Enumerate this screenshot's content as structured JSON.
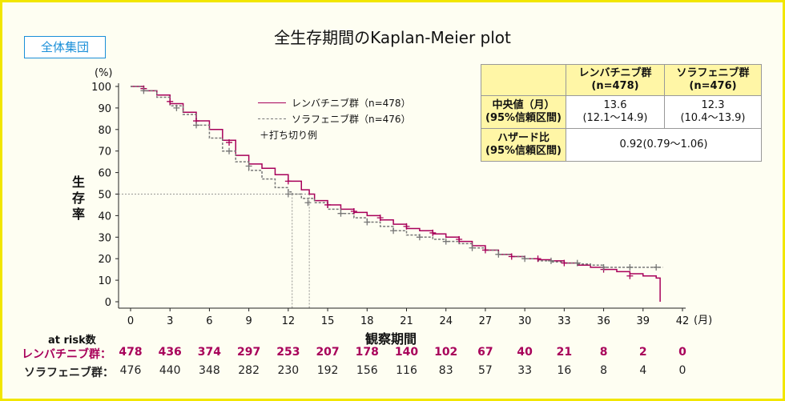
{
  "title": "全生存期間のKaplan-Meier plot",
  "subset_label": "全体集団",
  "y_unit": "(%)",
  "x_unit": "(月)",
  "ylabel": "生存率",
  "xlabel": "観察期間",
  "legend": {
    "lenvatinib": "レンバチニブ群（n=478）",
    "sorafenib": "ソラフェニブ群（n=476）",
    "censor": "＋打ち切り例"
  },
  "colors": {
    "lenvatinib": "#a8005a",
    "sorafenib": "#777777",
    "border": "#f2e600",
    "subset": "#1a8fd8",
    "table_header": "#fff6a6"
  },
  "median_table": {
    "col1": "レンバチニブ群\n(n=478)",
    "col2": "ソラフェニブ群\n(n=476)",
    "row1_label": "中央値（月）\n(95%信頼区間)",
    "row1_col1": "13.6\n(12.1～14.9)",
    "row1_col2": "12.3\n(10.4～13.9)",
    "row2_label": "ハザード比\n(95%信頼区間)",
    "row2_value": "0.92(0.79～1.06)"
  },
  "at_risk": {
    "title": "at risk数",
    "lenvatinib_label": "レンバチニブ群：",
    "sorafenib_label": "ソラフェニブ群：",
    "lenvatinib": [
      "478",
      "436",
      "374",
      "297",
      "253",
      "207",
      "178",
      "140",
      "102",
      "67",
      "40",
      "21",
      "8",
      "2",
      "0"
    ],
    "sorafenib": [
      "476",
      "440",
      "348",
      "282",
      "230",
      "192",
      "156",
      "116",
      "83",
      "57",
      "33",
      "16",
      "8",
      "4",
      "0"
    ]
  },
  "chart_data": {
    "type": "line",
    "title": "全生存期間のKaplan-Meier plot",
    "xlabel": "観察期間",
    "ylabel": "生存率",
    "x_unit": "月",
    "y_unit": "%",
    "xlim": [
      0,
      42
    ],
    "ylim": [
      0,
      100
    ],
    "x_ticks": [
      "0",
      "3",
      "6",
      "9",
      "12",
      "15",
      "18",
      "21",
      "24",
      "27",
      "30",
      "33",
      "36",
      "39",
      "42"
    ],
    "y_ticks": [
      "0",
      "10",
      "20",
      "30",
      "40",
      "50",
      "60",
      "70",
      "80",
      "90",
      "100"
    ],
    "medians": {
      "lenvatinib": 13.6,
      "sorafenib": 12.3,
      "level": 50
    },
    "series": [
      {
        "name": "レンバチニブ群（n=478）",
        "color": "#a8005a",
        "style": "solid",
        "x": [
          0,
          1,
          2,
          3,
          4,
          5,
          6,
          7,
          8,
          9,
          10,
          11,
          12,
          13,
          13.6,
          14,
          15,
          16,
          17,
          18,
          19,
          20,
          21,
          22,
          23,
          24,
          25,
          26,
          27,
          28,
          29,
          30,
          31,
          32,
          33,
          34,
          35,
          36,
          37,
          38,
          39,
          40,
          40.3
        ],
        "y": [
          100,
          98,
          96,
          92,
          88,
          84,
          80,
          75,
          68,
          64,
          62,
          59,
          56,
          52,
          50,
          47,
          45,
          43,
          41.5,
          40,
          38,
          36,
          34,
          33,
          31.5,
          30,
          28,
          26,
          24,
          22,
          21,
          20,
          19.5,
          19,
          18,
          17,
          16,
          15,
          14,
          13,
          12,
          11,
          0
        ]
      },
      {
        "name": "ソラフェニブ群（n=476）",
        "color": "#777777",
        "style": "dashed",
        "x": [
          0,
          1,
          2,
          3,
          4,
          5,
          6,
          7,
          8,
          9,
          10,
          11,
          12,
          12.3,
          13,
          14,
          15,
          16,
          17,
          18,
          19,
          20,
          21,
          22,
          23,
          24,
          25,
          26,
          27,
          28,
          29,
          30,
          31,
          32,
          33,
          34,
          35,
          36,
          37,
          38,
          39,
          40,
          40.5
        ],
        "y": [
          100,
          98,
          95,
          91,
          87,
          82,
          76,
          70,
          65,
          61,
          57,
          53,
          51,
          50,
          48,
          46,
          43,
          41,
          39,
          37,
          35,
          33,
          31,
          30,
          29,
          28,
          27,
          25,
          24,
          22,
          21,
          20,
          19,
          18.5,
          18,
          17.5,
          17,
          16,
          16,
          16,
          16,
          16,
          16
        ]
      }
    ],
    "censor_marks": {
      "lenvatinib": [
        [
          1,
          99
        ],
        [
          3,
          93
        ],
        [
          5,
          84
        ],
        [
          7.5,
          74
        ],
        [
          12,
          56
        ],
        [
          15,
          45
        ],
        [
          17,
          42
        ],
        [
          19,
          39
        ],
        [
          21,
          35
        ],
        [
          23,
          32
        ],
        [
          25,
          29
        ],
        [
          27,
          24
        ],
        [
          29,
          21
        ],
        [
          31,
          20
        ],
        [
          33,
          18
        ],
        [
          36,
          15
        ],
        [
          38,
          12
        ]
      ],
      "sorafenib": [
        [
          1,
          98
        ],
        [
          3.5,
          90
        ],
        [
          5,
          82
        ],
        [
          7.5,
          70
        ],
        [
          9,
          63
        ],
        [
          12,
          50
        ],
        [
          13.5,
          46
        ],
        [
          16,
          41
        ],
        [
          18,
          37
        ],
        [
          20,
          33
        ],
        [
          22,
          30
        ],
        [
          24,
          28
        ],
        [
          26,
          25
        ],
        [
          28,
          22
        ],
        [
          30,
          20
        ],
        [
          32,
          19
        ],
        [
          34,
          18
        ],
        [
          36,
          16
        ],
        [
          38,
          16
        ],
        [
          40,
          16
        ]
      ]
    }
  }
}
